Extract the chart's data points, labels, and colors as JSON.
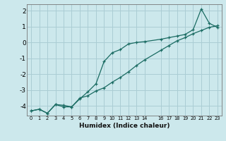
{
  "xlabel": "Humidex (Indice chaleur)",
  "bg_color": "#cce8ec",
  "grid_color": "#aacdd4",
  "line_color": "#1a6b62",
  "xlim": [
    -0.5,
    23.5
  ],
  "ylim": [
    -4.6,
    2.4
  ],
  "yticks": [
    -4,
    -3,
    -2,
    -1,
    0,
    1,
    2
  ],
  "xtick_positions": [
    0,
    1,
    2,
    3,
    4,
    5,
    6,
    7,
    8,
    9,
    10,
    11,
    12,
    13,
    14,
    16,
    17,
    18,
    19,
    20,
    21,
    22,
    23
  ],
  "xtick_labels": [
    "0",
    "1",
    "2",
    "3",
    "4",
    "5",
    "6",
    "7",
    "8",
    "9",
    "10",
    "11",
    "12",
    "13",
    "14",
    "16",
    "17",
    "18",
    "19",
    "20",
    "21",
    "22",
    "23"
  ],
  "line1_x": [
    0,
    1,
    2,
    3,
    4,
    5,
    6,
    7,
    8,
    9,
    10,
    11,
    12,
    13,
    14,
    16,
    17,
    18,
    19,
    20,
    21,
    22,
    23
  ],
  "line1_y": [
    -4.3,
    -4.2,
    -4.45,
    -3.9,
    -3.95,
    -4.05,
    -3.55,
    -3.1,
    -2.6,
    -1.2,
    -0.65,
    -0.45,
    -0.1,
    0.0,
    0.05,
    0.2,
    0.3,
    0.4,
    0.5,
    0.8,
    2.1,
    1.2,
    0.95
  ],
  "line2_x": [
    0,
    1,
    2,
    3,
    4,
    5,
    6,
    7,
    8,
    9,
    10,
    11,
    12,
    13,
    14,
    16,
    17,
    18,
    19,
    20,
    21,
    22,
    23
  ],
  "line2_y": [
    -4.3,
    -4.2,
    -4.45,
    -3.9,
    -4.05,
    -4.05,
    -3.5,
    -3.35,
    -3.05,
    -2.85,
    -2.5,
    -2.2,
    -1.85,
    -1.45,
    -1.1,
    -0.5,
    -0.2,
    0.1,
    0.3,
    0.55,
    0.75,
    0.95,
    1.05
  ]
}
